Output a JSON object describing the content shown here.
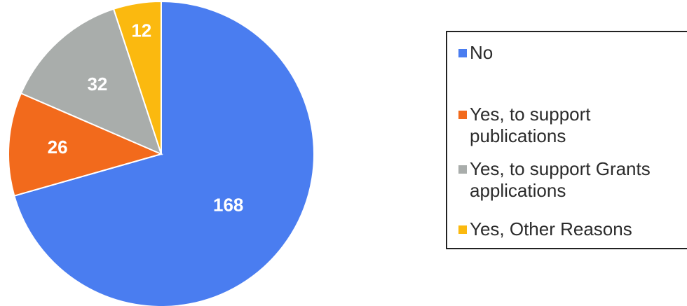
{
  "chart_data": {
    "type": "pie",
    "slices": [
      {
        "label": "No",
        "value": 168,
        "color": "#4a7df0"
      },
      {
        "label": "Yes, to support publications",
        "value": 26,
        "color": "#f26a1c"
      },
      {
        "label": "Yes, to support Grants applications",
        "value": 32,
        "color": "#a9adab"
      },
      {
        "label": "Yes, Other Reasons",
        "value": 12,
        "color": "#fbb90f"
      }
    ],
    "legend": {
      "placement": "right",
      "entries": [
        {
          "lines": [
            "No"
          ]
        },
        {
          "lines": [
            "Yes, to support",
            "publications"
          ]
        },
        {
          "lines": [
            "Yes, to support Grants",
            "applications"
          ]
        },
        {
          "lines": [
            "Yes, Other Reasons"
          ]
        }
      ]
    },
    "start_angle": "12 o'clock, clockwise",
    "slice_order": [
      0,
      1,
      2,
      3
    ]
  }
}
